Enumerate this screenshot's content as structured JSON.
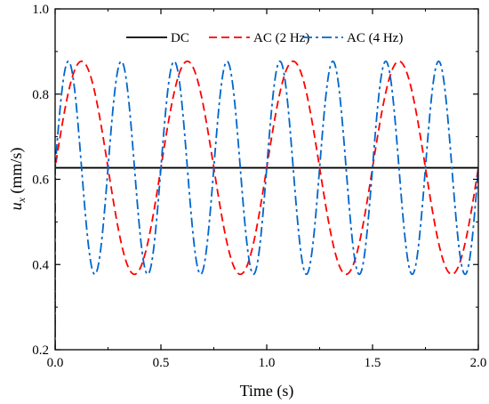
{
  "chart_data": {
    "type": "line",
    "xlabel": "Time (s)",
    "ylabel_main": "u",
    "ylabel_sub": "x",
    "ylabel_unit": " (mm/s)",
    "xlim": [
      0.0,
      2.0
    ],
    "ylim": [
      0.2,
      1.0
    ],
    "xticks": [
      "0.0",
      "0.5",
      "1.0",
      "1.5",
      "2.0"
    ],
    "yticks": [
      "0.2",
      "0.4",
      "0.6",
      "0.8",
      "1.0"
    ],
    "legend_position": "top",
    "series": [
      {
        "name": "DC",
        "style": "solid",
        "color": "#000000",
        "waveform": "constant",
        "value": 0.627
      },
      {
        "name": "AC (2 Hz)",
        "style": "dashed",
        "color": "#ff0000",
        "waveform": "sine",
        "mean": 0.627,
        "amplitude": 0.25,
        "frequency_hz": 2,
        "start_value": 0.627
      },
      {
        "name": "AC (4 Hz)",
        "style": "dashdot",
        "color": "#0066cc",
        "waveform": "sine",
        "mean": 0.627,
        "amplitude": 0.25,
        "frequency_hz": 4,
        "start_value": 0.627
      }
    ]
  }
}
